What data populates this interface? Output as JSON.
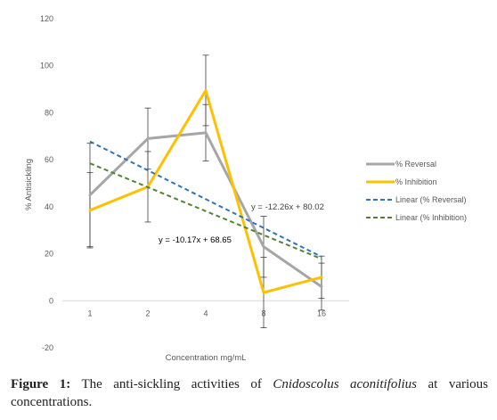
{
  "chart_data": {
    "type": "line",
    "x_categories": [
      "1",
      "2",
      "4",
      "8",
      "16"
    ],
    "y_ticks": [
      "120",
      "100",
      "80",
      "60",
      "40",
      "20",
      "0",
      "-20"
    ],
    "ylim": [
      -20,
      120
    ],
    "xlabel": "Concentration mg/mL",
    "ylabel": "% Antisickling",
    "grid": false,
    "legend_position": "right",
    "series": [
      {
        "name": "% Reversal",
        "style": "solid",
        "color": "#a6a6a6",
        "values": [
          45,
          69,
          71.5,
          23,
          6
        ],
        "error": [
          22,
          13,
          12,
          13,
          10
        ]
      },
      {
        "name": "% Inhibition",
        "style": "solid",
        "color": "#ffc000",
        "values": [
          38.5,
          48.5,
          89.5,
          3.5,
          10
        ],
        "error": [
          16,
          15,
          15,
          15,
          9
        ]
      }
    ],
    "trendlines": [
      {
        "name": "Linear (% Reversal)",
        "style": "dashed",
        "color": "#2e75b6",
        "slope": -12.26,
        "intercept": 80.02,
        "equation": "y = -12.26x + 80.02"
      },
      {
        "name": "Linear (% Inhibition)",
        "style": "dashed",
        "color": "#548235",
        "slope": -10.17,
        "intercept": 68.65,
        "equation": "y = -10.17x + 68.65"
      }
    ]
  },
  "caption": {
    "label": "Figure 1:",
    "text_before": " The anti-sickling activities of ",
    "species": "Cnidoscolus aconitifolius",
    "text_after": " at various concentrations."
  }
}
